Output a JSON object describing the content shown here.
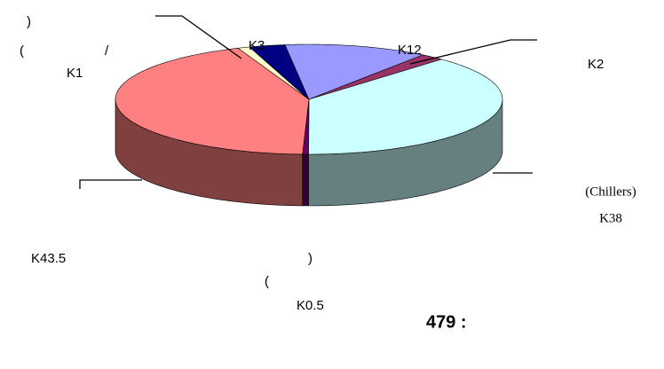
{
  "chart_data": {
    "type": "pie3d",
    "title": "479 :",
    "categories": [
      null,
      null,
      null,
      null,
      null,
      null,
      null
    ],
    "values": [
      1,
      3,
      12,
      2,
      38,
      0.5,
      43.5
    ],
    "value_labels": [
      "K1",
      "K3",
      "K12",
      "K2",
      "K38",
      "K0.5",
      "K43.5"
    ],
    "colors": [
      "#ffffcc",
      "#000080",
      "#9999ff",
      "#993366",
      "#ccffff",
      "#660066",
      "#ff8080"
    ],
    "annotations": [
      ")",
      "(",
      "/",
      "(Chillers)",
      ")",
      "("
    ]
  }
}
